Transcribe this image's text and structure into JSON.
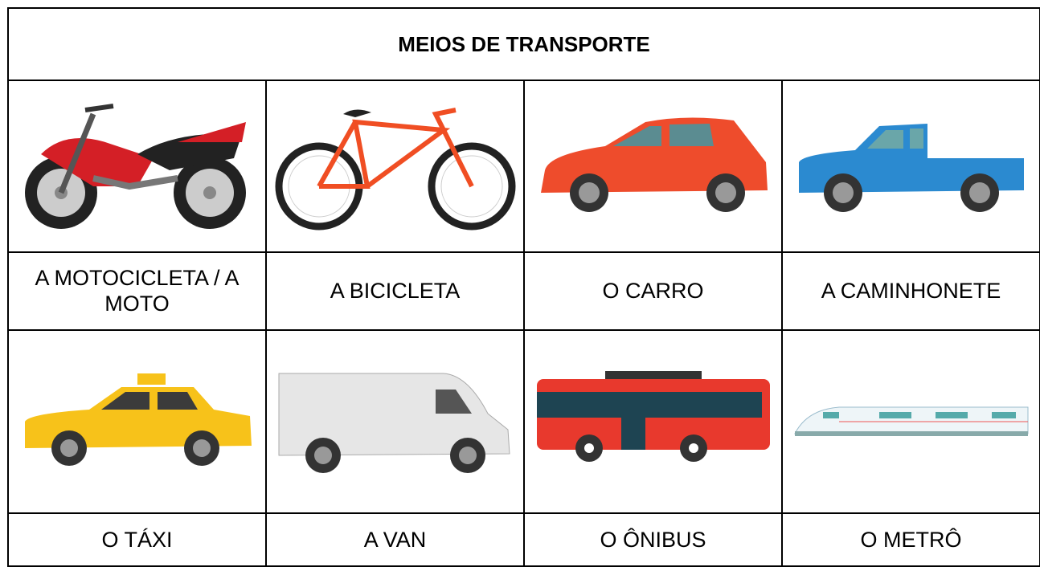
{
  "header": {
    "title": "MEIOS DE TRANSPORTE"
  },
  "table": {
    "rows": [
      [
        "A MOTOCICLETA / A MOTO",
        "A BICICLETA",
        "O CARRO",
        "A CAMINHONETE"
      ],
      [
        "O TÁXI",
        "A VAN",
        "O ÔNIBUS",
        "O METRÔ"
      ]
    ]
  }
}
